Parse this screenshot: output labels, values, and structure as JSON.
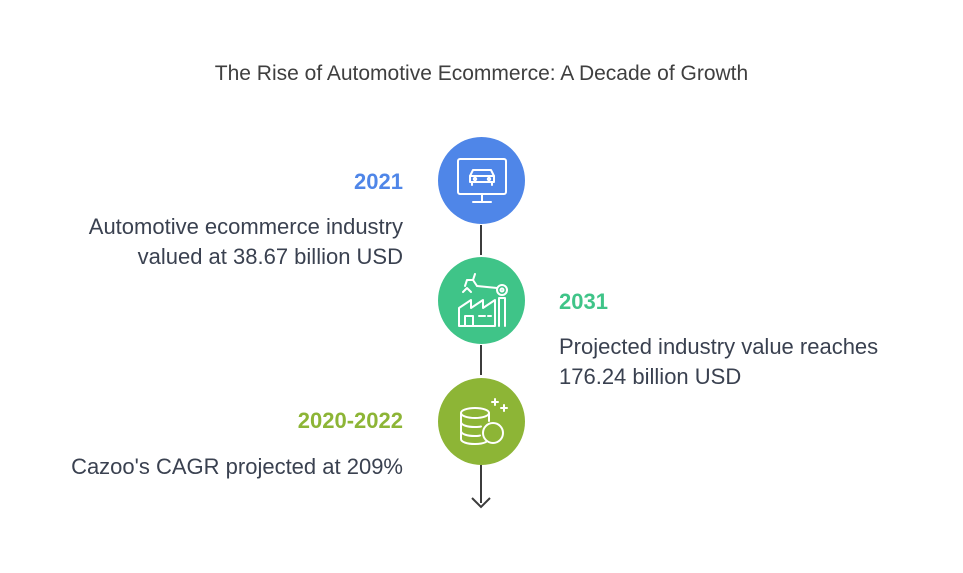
{
  "title": "The Rise of Automotive Ecommerce: A Decade of Growth",
  "colors": {
    "blue": "#4f86e8",
    "green": "#3fc488",
    "olive": "#8db536",
    "line": "#3c3c3c",
    "text": "#3a4150"
  },
  "events": [
    {
      "year": "2021",
      "desc_line1": "Automotive ecommerce industry",
      "desc_line2": "valued at 38.67 billion USD",
      "icon": "car-monitor-icon"
    },
    {
      "year": "2031",
      "desc_line1": "Projected industry value reaches",
      "desc_line2": "176.24 billion USD",
      "icon": "factory-robot-arm-icon"
    },
    {
      "year": "2020-2022",
      "desc_line1": "Cazoo's CAGR projected at 209%",
      "icon": "database-coins-icon"
    }
  ]
}
